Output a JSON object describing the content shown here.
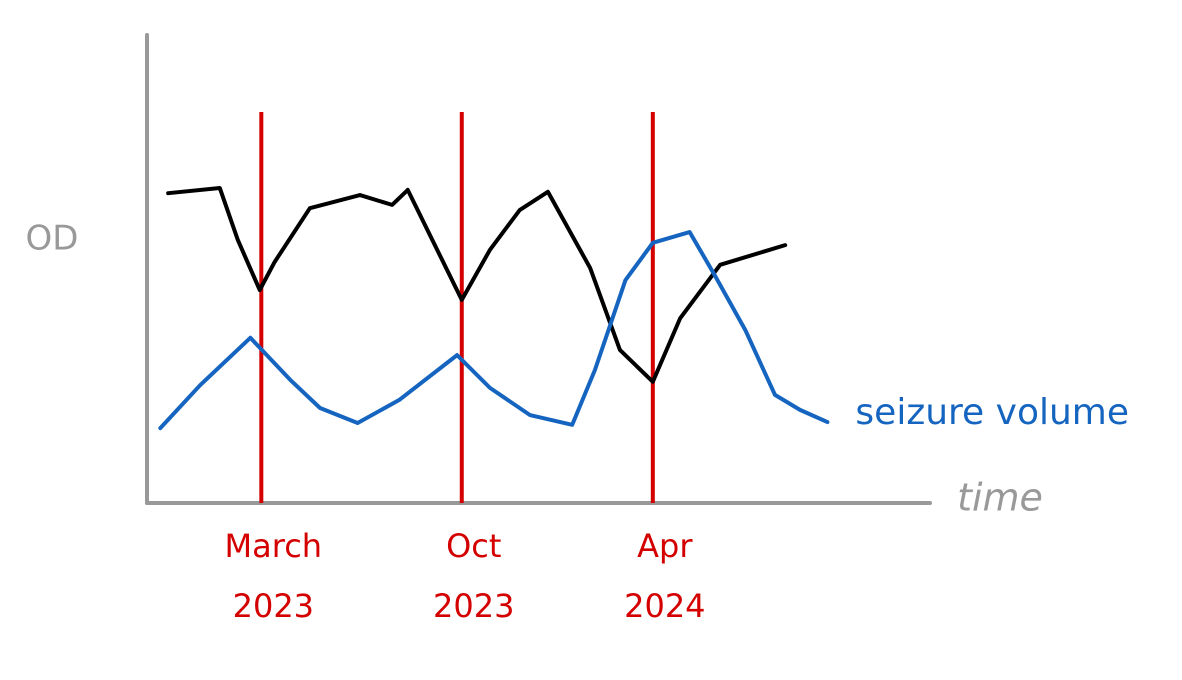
{
  "chart_data": {
    "type": "line",
    "y_label": "OD",
    "x_label": "time",
    "xlim": [
      0,
      100
    ],
    "ylim": [
      0,
      100
    ],
    "series": [
      {
        "color": "#000000",
        "x": [
          2.7,
          9.3,
          11.6,
          14.4,
          16.3,
          20.8,
          27.2,
          31.3,
          33.3,
          40.2,
          43.8,
          47.6,
          51.2,
          56.6,
          60.4,
          64.6,
          68.1,
          73.2,
          81.5
        ],
        "values": [
          66.2,
          67.3,
          56.2,
          45.5,
          51.5,
          63.0,
          65.8,
          63.7,
          66.9,
          43.4,
          54.1,
          62.6,
          66.5,
          50.2,
          32.7,
          25.9,
          39.5,
          50.9,
          55.1
        ]
      },
      {
        "name": "seizure volume",
        "color": "#1565c0",
        "x": [
          1.7,
          6.8,
          13.2,
          18.3,
          22.1,
          26.9,
          32.2,
          39.6,
          43.8,
          48.9,
          54.3,
          57.2,
          61.1,
          64.6,
          69.3,
          72.5,
          76.4,
          80.2,
          83.4,
          86.9
        ],
        "values": [
          16.0,
          25.2,
          35.3,
          26.3,
          20.3,
          17.1,
          22.0,
          31.6,
          24.6,
          18.8,
          16.7,
          28.4,
          47.6,
          55.6,
          57.9,
          48.7,
          37.0,
          23.1,
          19.9,
          17.3
        ]
      }
    ],
    "events": [
      {
        "x": 14.6,
        "label": [
          "March",
          "2023"
        ]
      },
      {
        "x": 40.2,
        "label": [
          "Oct",
          "2023"
        ]
      },
      {
        "x": 64.6,
        "label": [
          "Apr",
          "2024"
        ]
      }
    ],
    "event_color": "#d40000"
  }
}
